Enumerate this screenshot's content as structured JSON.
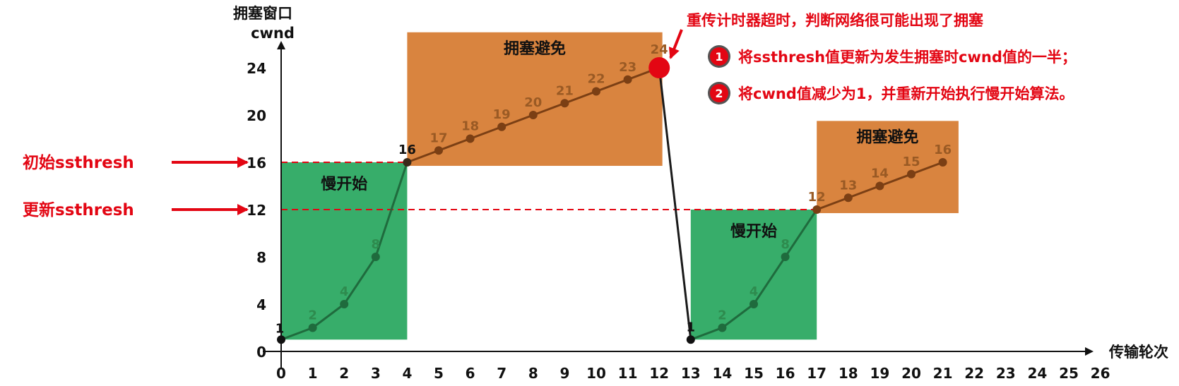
{
  "chart_data": {
    "type": "line",
    "ylabel_line1": "拥塞窗口",
    "ylabel_line2": "cwnd",
    "xlabel": "传输轮次",
    "xlim": [
      0,
      26
    ],
    "ylim": [
      0,
      26
    ],
    "x_ticks": [
      0,
      1,
      2,
      3,
      4,
      5,
      6,
      7,
      8,
      9,
      10,
      11,
      12,
      13,
      14,
      15,
      16,
      17,
      18,
      19,
      20,
      21,
      22,
      23,
      24,
      25,
      26
    ],
    "y_ticks": [
      0,
      4,
      8,
      12,
      16,
      20,
      24
    ],
    "series": [
      {
        "points": [
          {
            "x": 0,
            "y": 1,
            "label": "1"
          },
          {
            "x": 1,
            "y": 2,
            "label": "2"
          },
          {
            "x": 2,
            "y": 4,
            "label": "4"
          },
          {
            "x": 3,
            "y": 8,
            "label": "8"
          },
          {
            "x": 4,
            "y": 16,
            "label": "16"
          },
          {
            "x": 5,
            "y": 17,
            "label": "17"
          },
          {
            "x": 6,
            "y": 18,
            "label": "18"
          },
          {
            "x": 7,
            "y": 19,
            "label": "19"
          },
          {
            "x": 8,
            "y": 20,
            "label": "20"
          },
          {
            "x": 9,
            "y": 21,
            "label": "21"
          },
          {
            "x": 10,
            "y": 22,
            "label": "22"
          },
          {
            "x": 11,
            "y": 23,
            "label": "23"
          },
          {
            "x": 12,
            "y": 24,
            "label": "24"
          },
          {
            "x": 13,
            "y": 1,
            "label": "1"
          },
          {
            "x": 14,
            "y": 2,
            "label": "2"
          },
          {
            "x": 15,
            "y": 4,
            "label": "4"
          },
          {
            "x": 16,
            "y": 8,
            "label": "8"
          },
          {
            "x": 17,
            "y": 12,
            "label": "12"
          },
          {
            "x": 18,
            "y": 13,
            "label": "13"
          },
          {
            "x": 19,
            "y": 14,
            "label": "14"
          },
          {
            "x": 20,
            "y": 15,
            "label": "15"
          },
          {
            "x": 21,
            "y": 16,
            "label": "16"
          }
        ]
      }
    ],
    "thresholds": [
      {
        "label": "初始ssthresh",
        "y": 16,
        "x_end": 4
      },
      {
        "label": "更新ssthresh",
        "y": 12,
        "x_end": 17
      }
    ],
    "phases": [
      {
        "label": "慢开始",
        "kind": "slow-start",
        "x_from": 0,
        "x_to": 4,
        "y_from": 1,
        "y_to": 16
      },
      {
        "label": "拥塞避免",
        "kind": "congestion-avoidance",
        "x_from": 4,
        "x_to": 12.1,
        "y_from": 15.7,
        "y_to": 27
      },
      {
        "label": "慢开始",
        "kind": "slow-start",
        "x_from": 13,
        "x_to": 17,
        "y_from": 1,
        "y_to": 12
      },
      {
        "label": "拥塞避免",
        "kind": "congestion-avoidance",
        "x_from": 17,
        "x_to": 21.5,
        "y_from": 11.7,
        "y_to": 19.5
      }
    ],
    "timeout_point": {
      "x": 12,
      "y": 24
    },
    "annotation": {
      "headline": "重传计时器超时，判断网络很可能出现了拥塞",
      "steps": [
        {
          "num": "1",
          "text": "将ssthresh值更新为发生拥塞时cwnd值的一半；"
        },
        {
          "num": "2",
          "text": "将cwnd值减少为1，并重新开始执行慢开始算法。"
        }
      ]
    },
    "colors": {
      "slow_start_fill": "#37ad6a",
      "congestion_avoidance_fill": "#d9843f",
      "line_slow_start": "#1f6b3d",
      "line_congestion_avoidance": "#7b3f14",
      "drop_line": "#1a1a1a",
      "threshold": "#e30613",
      "accent_red": "#e30613",
      "axis": "#111111"
    }
  }
}
